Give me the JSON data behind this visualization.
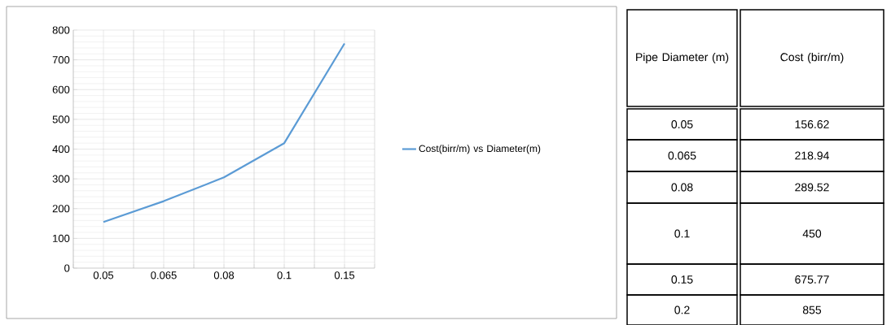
{
  "chart_data": [
    {
      "type": "line",
      "categories": [
        "0.05",
        "0.065",
        "0.08",
        "0.1",
        "0.15"
      ],
      "series": [
        {
          "name": "Cost(birr/m) vs Diameter(m)",
          "color": "#5b9bd5",
          "values": [
            155,
            225,
            305,
            420,
            755
          ]
        }
      ],
      "ylim": [
        0,
        800
      ],
      "yticks": [
        0,
        100,
        200,
        300,
        400,
        500,
        600,
        700,
        800
      ],
      "grid": true,
      "legend": "right",
      "marker": "none",
      "line_style": "solid"
    },
    {
      "type": "other",
      "annotations": [
        "Pipe Diameter (m)",
        "Cost (birr/m)",
        "0.05",
        "156.62",
        "0.065",
        "218.94",
        "0.08",
        "289.52",
        "0.1",
        "450",
        "0.15",
        "675.77",
        "0.2",
        "855"
      ]
    }
  ]
}
